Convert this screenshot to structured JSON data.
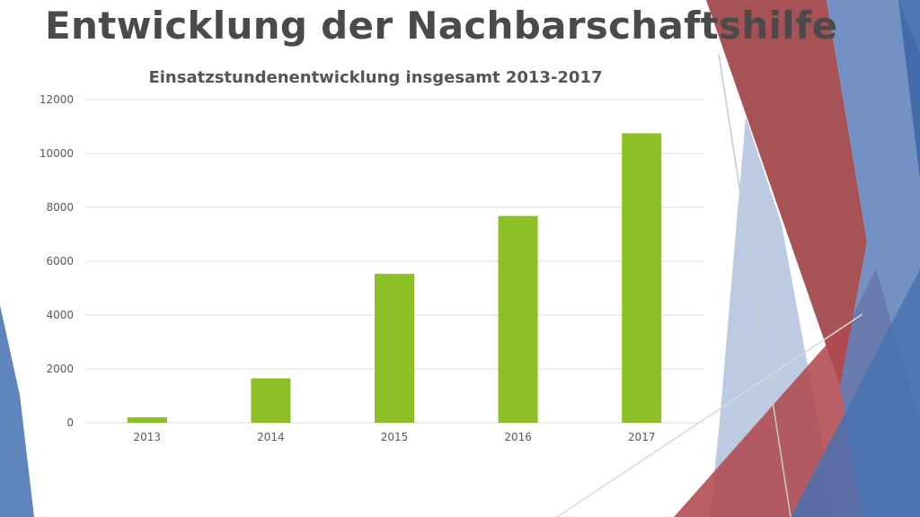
{
  "slide": {
    "title": "Entwicklung der Nachbarschaftshilfe"
  },
  "colors": {
    "bar": "#8dbf26",
    "grid": "#d9d9d9",
    "accent_red": "#a83a3f",
    "accent_blue": "#4f77b5"
  },
  "chart_data": {
    "type": "bar",
    "title": "Einsatzstundenentwicklung insgesamt 2013-2017",
    "xlabel": "",
    "ylabel": "",
    "categories": [
      "2013",
      "2014",
      "2015",
      "2016",
      "2017"
    ],
    "values": [
      200,
      1650,
      5530,
      7680,
      10750
    ],
    "ylim": [
      0,
      12000
    ],
    "yticks": [
      0,
      2000,
      4000,
      6000,
      8000,
      10000,
      12000
    ],
    "grid": true,
    "legend": "none"
  }
}
